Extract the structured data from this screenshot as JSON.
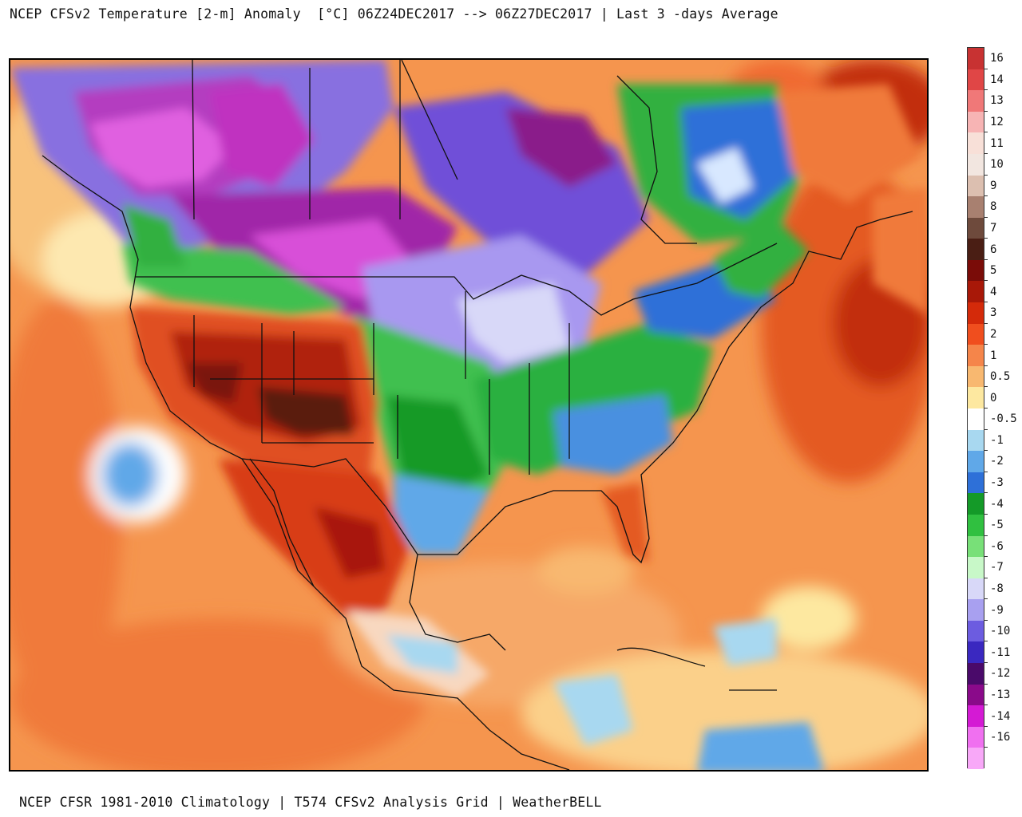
{
  "header": {
    "title": "NCEP CFSv2 Temperature [2-m] Anomaly  [°C] 06Z24DEC2017 --> 06Z27DEC2017 | Last 3 -days Average"
  },
  "footer": {
    "credit": "NCEP CFSR 1981-2010 Climatology | T574 CFSv2 Analysis Grid | WeatherBELL"
  },
  "legend": {
    "unit": "°C",
    "bins": [
      {
        "label": "16",
        "color": "#c83232"
      },
      {
        "label": "14",
        "color": "#e04646"
      },
      {
        "label": "13",
        "color": "#f07878"
      },
      {
        "label": "12",
        "color": "#f7b4b4"
      },
      {
        "label": "11",
        "color": "#f8e0d8"
      },
      {
        "label": "10",
        "color": "#f2e6e0"
      },
      {
        "label": "9",
        "color": "#dcbfb0"
      },
      {
        "label": "8",
        "color": "#a88070"
      },
      {
        "label": "7",
        "color": "#6e4a3c"
      },
      {
        "label": "6",
        "color": "#4a1e14"
      },
      {
        "label": "5",
        "color": "#7a0c08"
      },
      {
        "label": "4",
        "color": "#a81808"
      },
      {
        "label": "3",
        "color": "#d42a0a"
      },
      {
        "label": "2",
        "color": "#f04e1e"
      },
      {
        "label": "1",
        "color": "#f5854a"
      },
      {
        "label": "0.5",
        "color": "#f8b870"
      },
      {
        "label": "0",
        "color": "#fde8a0"
      },
      {
        "label": "-0.5",
        "color": "#ffffff"
      },
      {
        "label": "-1",
        "color": "#a8d8f0"
      },
      {
        "label": "-2",
        "color": "#60a8e8"
      },
      {
        "label": "-3",
        "color": "#2e70d8"
      },
      {
        "label": "-4",
        "color": "#149a28"
      },
      {
        "label": "-5",
        "color": "#30c040"
      },
      {
        "label": "-6",
        "color": "#78e078"
      },
      {
        "label": "-7",
        "color": "#c8f8c8"
      },
      {
        "label": "-8",
        "color": "#d8d8f8"
      },
      {
        "label": "-9",
        "color": "#a8a0f0"
      },
      {
        "label": "-10",
        "color": "#6c5ce0"
      },
      {
        "label": "-11",
        "color": "#3a28c0"
      },
      {
        "label": "-12",
        "color": "#4a0a6a"
      },
      {
        "label": "-13",
        "color": "#8a0a8a"
      },
      {
        "label": "-14",
        "color": "#d41ad4"
      },
      {
        "label": "-16",
        "color": "#f070f0"
      },
      {
        "label": "",
        "color": "#f8a8f8"
      }
    ]
  }
}
